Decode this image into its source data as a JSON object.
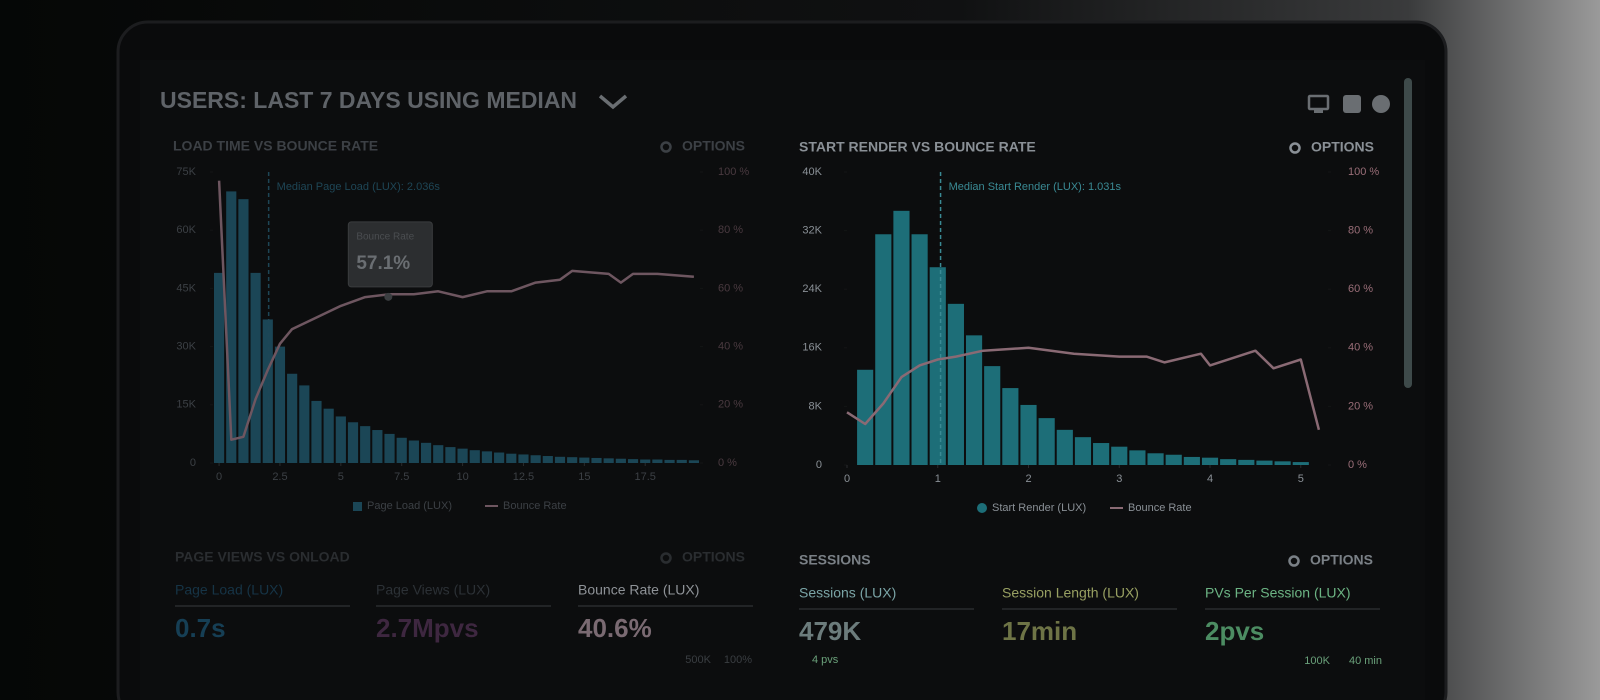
{
  "header": {
    "title": "USERS: LAST 7 DAYS USING MEDIAN"
  },
  "chart_data": [
    {
      "type": "histogram",
      "title": "LOAD TIME VS BOUNCE RATE",
      "options_label": "OPTIONS",
      "name": "Page Load (LUX)",
      "color": "#1b4656",
      "bins": [
        -0.25,
        0.25,
        0.75,
        1.25,
        1.75,
        2.25,
        2.75,
        3.25,
        3.75,
        4.25,
        4.75,
        5.25,
        5.75,
        6.25,
        6.75,
        7.25,
        7.75,
        8.25,
        8.75,
        9.25,
        9.75,
        10.25,
        10.75,
        11.25,
        11.75,
        12.25,
        12.75,
        13.25,
        13.75,
        14.25,
        14.75,
        15.25,
        15.75,
        16.25,
        16.75,
        17.25,
        17.75,
        18.25,
        18.75,
        19.25,
        19.75
      ],
      "values": [
        49000,
        70000,
        68000,
        49000,
        37000,
        30000,
        23000,
        20000,
        16000,
        14000,
        12000,
        10500,
        9500,
        8500,
        7500,
        6500,
        5800,
        5200,
        4600,
        4100,
        3700,
        3300,
        3000,
        2700,
        2400,
        2200,
        2000,
        1800,
        1600,
        1500,
        1400,
        1300,
        1200,
        1100,
        1000,
        900,
        900,
        800,
        800,
        700
      ],
      "line": {
        "name": "Bounce Rate",
        "color": "#6e5660",
        "axis": "y2",
        "x": [
          0,
          0.5,
          1,
          1.5,
          2,
          2.5,
          3,
          4,
          5,
          6,
          7,
          8,
          9,
          10,
          11,
          12,
          13,
          14,
          14.5,
          16,
          16.5,
          17,
          18,
          19.5
        ],
        "values": [
          97,
          8,
          9,
          22,
          32,
          41,
          46,
          50,
          54,
          57,
          58,
          58,
          59,
          57,
          59,
          59,
          62,
          63,
          66,
          65,
          62,
          65,
          65,
          64
        ]
      },
      "xlim": [
        -0.25,
        19.75
      ],
      "xticks": [
        0,
        2.5,
        5,
        7.5,
        10,
        12.5,
        15,
        17.5
      ],
      "ylim": [
        0,
        75000
      ],
      "yticks": [
        0,
        {
          "value": 15000,
          "label": "15K"
        },
        {
          "value": 30000,
          "label": "30K"
        },
        {
          "value": 45000,
          "label": "45K"
        },
        {
          "value": 60000,
          "label": "60K"
        },
        {
          "value": 75000,
          "label": "75K"
        }
      ],
      "y2lim": [
        0,
        100
      ],
      "y2ticks": [
        {
          "value": 0,
          "label": "0 %"
        },
        {
          "value": 20,
          "label": "20 %"
        },
        {
          "value": 40,
          "label": "40 %"
        },
        {
          "value": 60,
          "label": "60 %"
        },
        {
          "value": 80,
          "label": "80 %"
        },
        {
          "value": 100,
          "label": "100 %"
        }
      ],
      "median": {
        "value": 2.036,
        "label": "Median Page Load (LUX): 2.036s"
      },
      "tooltip": {
        "title": "Bounce Rate",
        "value": 57.1,
        "label": "57.1%"
      }
    },
    {
      "type": "histogram",
      "title": "START RENDER VS BOUNCE RATE",
      "options_label": "OPTIONS",
      "name": "Start Render (LUX)",
      "color": "#1d6e78",
      "bins": [
        0.1,
        0.3,
        0.5,
        0.7,
        0.9,
        1.1,
        1.3,
        1.5,
        1.7,
        1.9,
        2.1,
        2.3,
        2.5,
        2.7,
        2.9,
        3.1,
        3.3,
        3.5,
        3.7,
        3.9,
        4.1,
        4.3,
        4.5,
        4.7,
        4.9,
        5.1
      ],
      "values": [
        13000,
        31500,
        34700,
        31500,
        27000,
        22000,
        17700,
        13500,
        10500,
        8200,
        6400,
        4800,
        3800,
        3000,
        2500,
        2000,
        1600,
        1400,
        1100,
        1000,
        800,
        700,
        600,
        500,
        400
      ],
      "line": {
        "name": "Bounce Rate",
        "color": "#8a6a74",
        "axis": "y2",
        "x": [
          0,
          0.2,
          0.4,
          0.6,
          0.8,
          1,
          1.2,
          1.5,
          2,
          2.5,
          3,
          3.3,
          3.5,
          3.9,
          4,
          4.5,
          4.7,
          5,
          5.2
        ],
        "values": [
          18,
          14,
          21,
          30,
          34,
          36,
          37,
          39,
          40,
          38,
          37,
          37,
          35,
          38,
          34,
          39,
          33,
          36,
          12
        ]
      },
      "xlim": [
        0,
        5.3
      ],
      "xticks": [
        0,
        1,
        2,
        3,
        4,
        5
      ],
      "ylim": [
        0,
        40000
      ],
      "yticks": [
        0,
        {
          "value": 8000,
          "label": "8K"
        },
        {
          "value": 16000,
          "label": "16K"
        },
        {
          "value": 24000,
          "label": "24K"
        },
        {
          "value": 32000,
          "label": "32K"
        },
        {
          "value": 40000,
          "label": "40K"
        }
      ],
      "y2lim": [
        0,
        100
      ],
      "y2ticks": [
        {
          "value": 0,
          "label": "0 %"
        },
        {
          "value": 20,
          "label": "20 %"
        },
        {
          "value": 40,
          "label": "40 %"
        },
        {
          "value": 60,
          "label": "60 %"
        },
        {
          "value": 80,
          "label": "80 %"
        },
        {
          "value": 100,
          "label": "100 %"
        }
      ],
      "median": {
        "value": 1.031,
        "label": "Median Start Render (LUX): 1.031s"
      }
    }
  ],
  "panels": [
    {
      "title": "PAGE VIEWS VS ONLOAD",
      "options_label": "OPTIONS",
      "kpis": [
        {
          "label": "Page Load (LUX)",
          "value": "0.7s"
        },
        {
          "label": "Page Views (LUX)",
          "value": "2.7Mpvs"
        },
        {
          "label": "Bounce Rate (LUX)",
          "value": "40.6%"
        }
      ],
      "notes": [
        "500K",
        "100%"
      ]
    },
    {
      "title": "SESSIONS",
      "options_label": "OPTIONS",
      "kpis": [
        {
          "label": "Sessions (LUX)",
          "value": "479K"
        },
        {
          "label": "Session Length (LUX)",
          "value": "17min"
        },
        {
          "label": "PVs Per Session (LUX)",
          "value": "2pvs"
        }
      ],
      "notes": [
        "4 pvs",
        "100K",
        "40 min"
      ]
    }
  ]
}
